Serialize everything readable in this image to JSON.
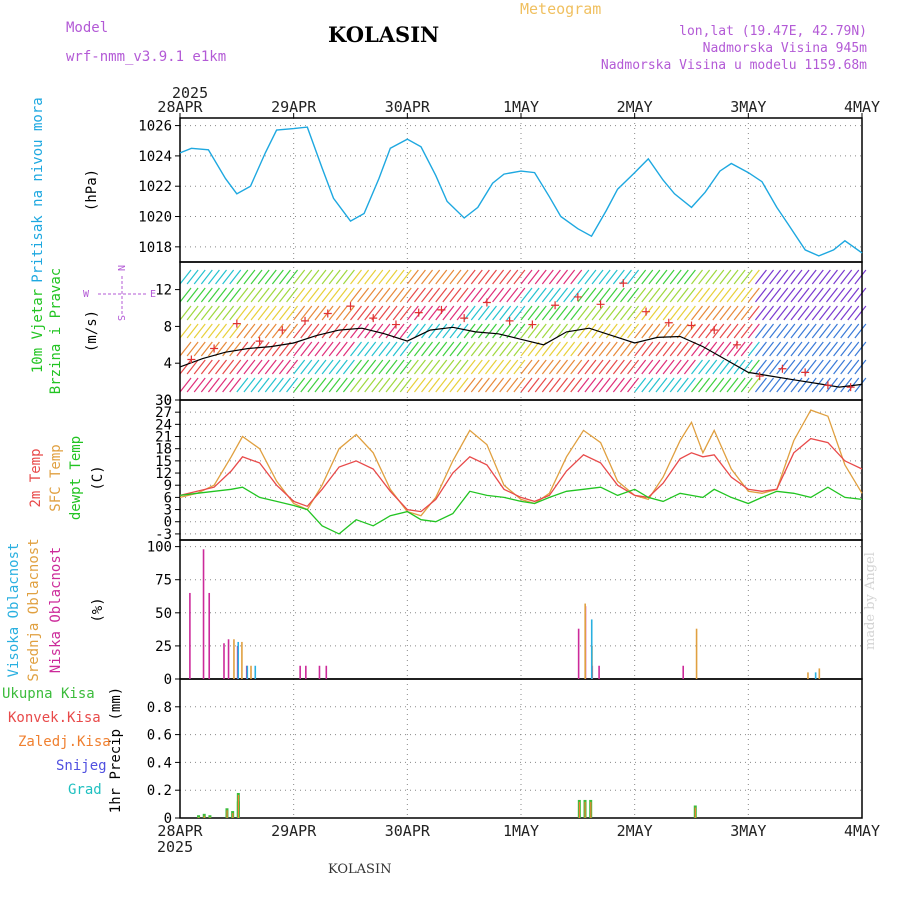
{
  "header": {
    "model_label": "Model",
    "model_name": "wrf-nmm_v3.9.1 e1km",
    "station": "KOLASIN",
    "product": "Meteogram",
    "lonlat": "lon,lat (19.47E, 42.79N)",
    "elevation": "Nadmorska Visina 945m",
    "elevation_model": "Nadmorska Visina u modelu 1159.68m",
    "year": "2025",
    "footer_station": "KOLASIN",
    "credit": "made by Angel"
  },
  "colors": {
    "pressure": "#1ea8e0",
    "wind_speed": "#000000",
    "gust": "#e03030",
    "temp2m": "#e84a4a",
    "sfc_temp": "#e0a040",
    "dewpt": "#22c422",
    "high_cloud": "#2ab0e0",
    "mid_cloud": "#e0a040",
    "low_cloud": "#cc2a9a",
    "total_precip": "#3cbc3c",
    "conv_precip": "#e84a4a",
    "frozen_precip": "#f08030",
    "snow": "#5050e0",
    "graupel": "#20c0c0"
  },
  "chart_data": [
    {
      "type": "line",
      "panel": "pressure",
      "ylabel_lines": [
        "Pritisak na nivou mora",
        "(hPa)"
      ],
      "x_tick_labels_top": [
        "28APR",
        "29APR",
        "30APR",
        "1MAY",
        "2MAY",
        "3MAY",
        "4MAY"
      ],
      "x_tick_labels_bottom": [
        "28APR",
        "29APR",
        "30APR",
        "1MAY",
        "2MAY",
        "3MAY",
        "4MAY"
      ],
      "xlim_days": [
        0,
        6
      ],
      "ylim": [
        1017,
        1026.5
      ],
      "yticks": [
        1018,
        1020,
        1022,
        1024,
        1026
      ],
      "grid": true,
      "series": [
        {
          "x": [
            0,
            0.1,
            0.25,
            0.4,
            0.5,
            0.62,
            0.75,
            0.85,
            1.0,
            1.12,
            1.25,
            1.35,
            1.5,
            1.62,
            1.75,
            1.85,
            2.0,
            2.12,
            2.25,
            2.35,
            2.5,
            2.62,
            2.75,
            2.85,
            3.0,
            3.12,
            3.25,
            3.35,
            3.5,
            3.62,
            3.75,
            3.85,
            4.0,
            4.12,
            4.25,
            4.35,
            4.5,
            4.62,
            4.75,
            4.85,
            5.0,
            5.12,
            5.25,
            5.35,
            5.5,
            5.62,
            5.75,
            5.85,
            6.0
          ],
          "values": [
            1024.2,
            1024.5,
            1024.4,
            1022.5,
            1021.5,
            1022.0,
            1024.2,
            1025.7,
            1025.8,
            1025.9,
            1023.2,
            1021.2,
            1019.7,
            1020.2,
            1022.5,
            1024.5,
            1025.1,
            1024.6,
            1022.7,
            1021.0,
            1019.9,
            1020.6,
            1022.2,
            1022.8,
            1023.0,
            1022.9,
            1021.3,
            1020.0,
            1019.2,
            1018.7,
            1020.4,
            1021.8,
            1022.9,
            1023.8,
            1022.4,
            1021.5,
            1020.6,
            1021.6,
            1023.0,
            1023.5,
            1022.9,
            1022.3,
            1020.6,
            1019.5,
            1017.8,
            1017.4,
            1017.8,
            1018.4,
            1017.6
          ]
        }
      ]
    },
    {
      "type": "line",
      "panel": "wind",
      "ylabel_lines": [
        "10m Vjetar",
        "Brzina i Pravac",
        "(m/s)"
      ],
      "compass": [
        "N",
        "W",
        "E",
        "S"
      ],
      "xlim_days": [
        0,
        6
      ],
      "ylim": [
        0,
        15
      ],
      "yticks": [
        0,
        4,
        8,
        12
      ],
      "series": [
        {
          "name": "wind_speed",
          "x": [
            0,
            0.2,
            0.4,
            0.6,
            0.8,
            1.0,
            1.2,
            1.4,
            1.6,
            1.8,
            2.0,
            2.2,
            2.4,
            2.6,
            2.8,
            3.0,
            3.2,
            3.4,
            3.6,
            3.8,
            4.0,
            4.2,
            4.4,
            4.6,
            4.8,
            5.0,
            5.2,
            5.4,
            5.6,
            5.8,
            6.0
          ],
          "values": [
            3.6,
            4.5,
            5.2,
            5.6,
            5.8,
            6.2,
            7.0,
            7.6,
            7.8,
            7.2,
            6.4,
            7.6,
            7.9,
            7.4,
            7.2,
            6.6,
            6.0,
            7.4,
            7.8,
            7.0,
            6.2,
            6.8,
            6.9,
            5.8,
            4.4,
            3.0,
            2.6,
            2.2,
            1.8,
            1.4,
            1.7
          ]
        },
        {
          "name": "gust",
          "x": [
            0.1,
            0.3,
            0.5,
            0.7,
            0.9,
            1.1,
            1.3,
            1.5,
            1.7,
            1.9,
            2.1,
            2.3,
            2.5,
            2.7,
            2.9,
            3.1,
            3.3,
            3.5,
            3.7,
            3.9,
            4.1,
            4.3,
            4.5,
            4.7,
            4.9,
            5.1,
            5.3,
            5.5,
            5.7,
            5.9
          ],
          "values": [
            4.4,
            5.6,
            8.3,
            6.4,
            7.6,
            8.6,
            9.4,
            10.2,
            8.9,
            8.2,
            9.5,
            9.8,
            8.9,
            10.6,
            8.6,
            8.2,
            10.3,
            11.2,
            10.4,
            12.7,
            9.6,
            8.4,
            8.1,
            7.6,
            6.0,
            2.6,
            3.4,
            3.0,
            1.6,
            1.4
          ]
        }
      ]
    },
    {
      "type": "line",
      "panel": "temperature",
      "ylabel_lines": [
        "2m Temp",
        "SFC Temp",
        "dewpt Temp",
        "(C)"
      ],
      "xlim_days": [
        0,
        6
      ],
      "ylim": [
        -4.5,
        30
      ],
      "yticks": [
        -3,
        0,
        3,
        6,
        9,
        12,
        15,
        18,
        21,
        24,
        27,
        30
      ],
      "grid": true,
      "series": [
        {
          "name": "2m Temp",
          "x": [
            0,
            0.15,
            0.3,
            0.45,
            0.55,
            0.7,
            0.85,
            1.0,
            1.12,
            1.25,
            1.4,
            1.55,
            1.7,
            1.85,
            2.0,
            2.12,
            2.25,
            2.4,
            2.55,
            2.7,
            2.85,
            3.0,
            3.12,
            3.25,
            3.4,
            3.55,
            3.7,
            3.85,
            4.0,
            4.12,
            4.25,
            4.4,
            4.5,
            4.6,
            4.7,
            4.85,
            5.0,
            5.12,
            5.25,
            5.4,
            5.55,
            5.7,
            5.85,
            6.0
          ],
          "values": [
            6.5,
            7.5,
            8.5,
            12.5,
            16.0,
            14.5,
            9.0,
            5.0,
            3.8,
            8.0,
            13.5,
            15.0,
            13.0,
            7.5,
            3.0,
            2.5,
            5.5,
            12.0,
            16.0,
            14.0,
            8.0,
            6.0,
            5.0,
            6.5,
            12.5,
            16.5,
            14.5,
            9.0,
            6.5,
            6.0,
            9.5,
            15.5,
            17.0,
            16.0,
            16.5,
            11.0,
            8.0,
            7.5,
            8.0,
            17.0,
            20.5,
            19.5,
            15.0,
            13.0
          ]
        },
        {
          "name": "SFC Temp",
          "x": [
            0,
            0.15,
            0.3,
            0.45,
            0.55,
            0.7,
            0.85,
            1.0,
            1.12,
            1.25,
            1.4,
            1.55,
            1.7,
            1.85,
            2.0,
            2.12,
            2.25,
            2.4,
            2.55,
            2.7,
            2.85,
            3.0,
            3.12,
            3.25,
            3.4,
            3.55,
            3.7,
            3.85,
            4.0,
            4.12,
            4.25,
            4.4,
            4.5,
            4.6,
            4.7,
            4.85,
            5.0,
            5.12,
            5.25,
            5.4,
            5.55,
            5.7,
            5.85,
            6.0
          ],
          "values": [
            6.0,
            7.0,
            9.0,
            16.0,
            21.0,
            18.0,
            10.0,
            4.5,
            3.0,
            9.0,
            18.0,
            21.5,
            17.0,
            8.0,
            2.5,
            1.5,
            6.0,
            15.0,
            22.5,
            19.0,
            9.0,
            5.5,
            4.5,
            7.0,
            16.0,
            22.5,
            19.5,
            10.0,
            6.5,
            5.5,
            11.0,
            20.0,
            24.5,
            17.0,
            22.5,
            13.0,
            7.5,
            7.0,
            8.0,
            20.0,
            27.5,
            26.0,
            14.0,
            7.0
          ]
        },
        {
          "name": "dewpt Temp",
          "x": [
            0,
            0.15,
            0.3,
            0.45,
            0.55,
            0.7,
            0.85,
            1.0,
            1.12,
            1.25,
            1.4,
            1.55,
            1.7,
            1.85,
            2.0,
            2.12,
            2.25,
            2.4,
            2.55,
            2.7,
            2.85,
            3.0,
            3.12,
            3.25,
            3.4,
            3.55,
            3.7,
            3.85,
            4.0,
            4.12,
            4.25,
            4.4,
            4.5,
            4.6,
            4.7,
            4.85,
            5.0,
            5.12,
            5.25,
            5.4,
            5.55,
            5.7,
            5.85,
            6.0
          ],
          "values": [
            6.5,
            7.0,
            7.5,
            8.0,
            8.5,
            6.0,
            5.0,
            4.0,
            3.0,
            -1.0,
            -3.0,
            0.5,
            -1.0,
            1.5,
            2.5,
            0.5,
            0.0,
            2.0,
            7.5,
            6.5,
            6.0,
            5.0,
            4.5,
            6.0,
            7.5,
            8.0,
            8.5,
            6.5,
            8.0,
            6.0,
            5.0,
            7.0,
            6.5,
            6.0,
            8.0,
            6.0,
            4.5,
            6.0,
            7.5,
            7.0,
            6.0,
            8.5,
            6.0,
            5.5
          ]
        }
      ]
    },
    {
      "type": "bar",
      "panel": "cloud",
      "ylabel_lines": [
        "Visoka Oblacnost",
        "Srednja Oblacnost",
        "Niska Oblacnost",
        "(%)"
      ],
      "xlim_days": [
        0,
        6
      ],
      "ylim": [
        0,
        105
      ],
      "yticks": [
        0,
        25,
        50,
        75,
        100
      ],
      "grid": true,
      "series": [
        {
          "name": "Niska Oblacnost",
          "x": [
            0.08,
            0.2,
            0.25,
            0.38,
            0.42,
            0.5,
            0.58,
            1.05,
            1.1,
            1.22,
            1.28,
            3.5,
            3.56,
            3.62,
            3.68,
            4.42
          ],
          "values": [
            65,
            98,
            65,
            27,
            30,
            25,
            10,
            10,
            10,
            10,
            10,
            38,
            55,
            10,
            10,
            10
          ]
        },
        {
          "name": "Srednja Oblacnost",
          "x": [
            0.45,
            0.52,
            0.6,
            3.54,
            3.6,
            4.52,
            5.5,
            5.6
          ],
          "values": [
            30,
            28,
            10,
            57,
            25,
            38,
            5,
            8
          ]
        },
        {
          "name": "Visoka Oblacnost",
          "x": [
            0.47,
            0.55,
            0.62,
            3.58,
            5.55
          ],
          "values": [
            28,
            10,
            10,
            45,
            5
          ]
        }
      ]
    },
    {
      "type": "bar",
      "panel": "precip",
      "ylabel_lines": [
        "1hr Precip (mm)"
      ],
      "legend": [
        "Ukupna Kisa",
        "Konvek.Kisa",
        "Zaledj.Kisa",
        "Snijeg",
        "Grad"
      ],
      "xlim_days": [
        0,
        6
      ],
      "ylim": [
        0,
        1.0
      ],
      "yticks": [
        0,
        0.2,
        0.4,
        0.6,
        0.8
      ],
      "grid": true,
      "series": [
        {
          "name": "Ukupna Kisa",
          "x": [
            0.15,
            0.2,
            0.25,
            0.4,
            0.45,
            0.5,
            0.5,
            3.5,
            3.55,
            3.6,
            4.52
          ],
          "values": [
            0.02,
            0.03,
            0.02,
            0.07,
            0.05,
            0.12,
            0.18,
            0.13,
            0.13,
            0.13,
            0.09
          ]
        }
      ]
    }
  ]
}
